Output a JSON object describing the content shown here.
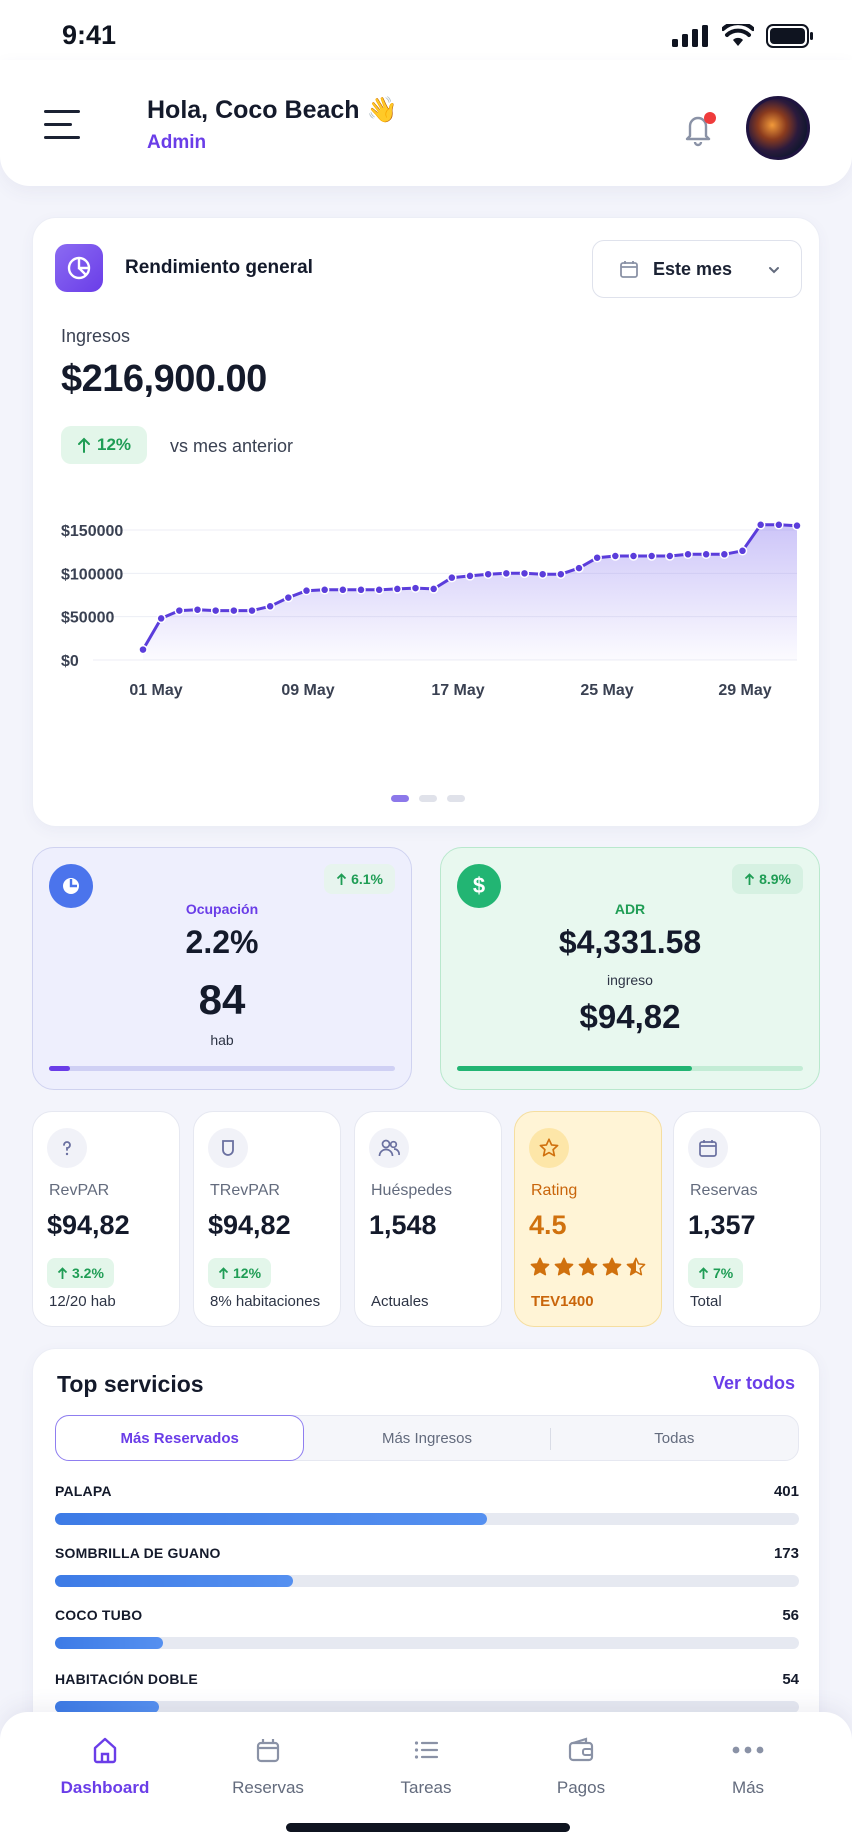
{
  "status_bar": {
    "time": "9:41"
  },
  "header": {
    "greeting": "Hola, Coco Beach 👋",
    "role": "Admin"
  },
  "performance": {
    "title": "Rendimiento general",
    "period": "Este mes",
    "revenue_label": "Ingresos",
    "revenue_value": "$216,900.00",
    "change": "12%",
    "change_note": "vs mes anterior"
  },
  "chart_data": {
    "type": "area",
    "title": "",
    "xlabel": "",
    "ylabel": "",
    "ylim": [
      0,
      150000
    ],
    "y_ticks": [
      "$150000",
      "$100000",
      "$50000",
      "$0"
    ],
    "x_ticks": [
      "01 May",
      "09 May",
      "17 May",
      "25 May",
      "29 May"
    ],
    "series": [
      {
        "values": [
          12000,
          48000,
          57000,
          58000,
          57000,
          57000,
          57000,
          62000,
          72000,
          80000,
          81000,
          81000,
          81000,
          81000,
          82000,
          83000,
          82000,
          95000,
          97000,
          99000,
          100000,
          100000,
          99000,
          99000,
          106000,
          118000,
          120000,
          120000,
          120000,
          120000,
          122000,
          122000,
          122000,
          126000,
          156000,
          156000,
          155000
        ]
      }
    ],
    "grid": true,
    "legend": "none"
  },
  "occupancy": {
    "label": "Ocupación",
    "value": "2.2%",
    "rooms": "84",
    "rooms_unit": "hab",
    "trend": "6.1%",
    "progress": 0.06,
    "color": "#6a3de8"
  },
  "adr": {
    "label": "ADR",
    "value": "$4,331.58",
    "sub_label": "ingreso",
    "sub_value": "$94,82",
    "trend": "8.9%",
    "progress": 0.68,
    "color": "#22b573"
  },
  "metrics": [
    {
      "icon": "question-icon",
      "label": "RevPAR",
      "value": "$94,82",
      "trend": "3.2%",
      "foot": "12/20 hab"
    },
    {
      "icon": "shield-icon",
      "label": "TRevPAR",
      "value": "$94,82",
      "trend": "12%",
      "foot": "8% habitaciones"
    },
    {
      "icon": "users-icon",
      "label": "Huéspedes",
      "value": "1,548",
      "foot": "Actuales"
    },
    {
      "icon": "star-icon",
      "label": "Rating",
      "value": "4.5",
      "rating": 4.5,
      "foot": "TEV1400"
    },
    {
      "icon": "calendar-icon",
      "label": "Reservas",
      "value": "1,357",
      "trend": "7%",
      "foot": "Total"
    }
  ],
  "services": {
    "title": "Top servicios",
    "link": "Ver todos",
    "tabs": [
      "Más Reservados",
      "Más Ingresos",
      "Todas"
    ],
    "active_tab": 0,
    "items": [
      {
        "name": "PALAPA",
        "count": "401",
        "share": 0.58
      },
      {
        "name": "SOMBRILLA DE GUANO",
        "count": "173",
        "share": 0.32
      },
      {
        "name": "COCO TUBO",
        "count": "56",
        "share": 0.145
      },
      {
        "name": "HABITACIÓN DOBLE",
        "count": "54",
        "share": 0.14
      }
    ]
  },
  "nav": [
    {
      "icon": "home-icon",
      "label": "Dashboard",
      "active": true
    },
    {
      "icon": "calendar-icon",
      "label": "Reservas"
    },
    {
      "icon": "list-icon",
      "label": "Tareas"
    },
    {
      "icon": "wallet-icon",
      "label": "Pagos"
    },
    {
      "icon": "more-icon",
      "label": "Más"
    }
  ],
  "colors": {
    "accent": "#6a3de8",
    "success": "#1f9d55",
    "bar": "#3d7be6",
    "rating": "#d0710e"
  }
}
